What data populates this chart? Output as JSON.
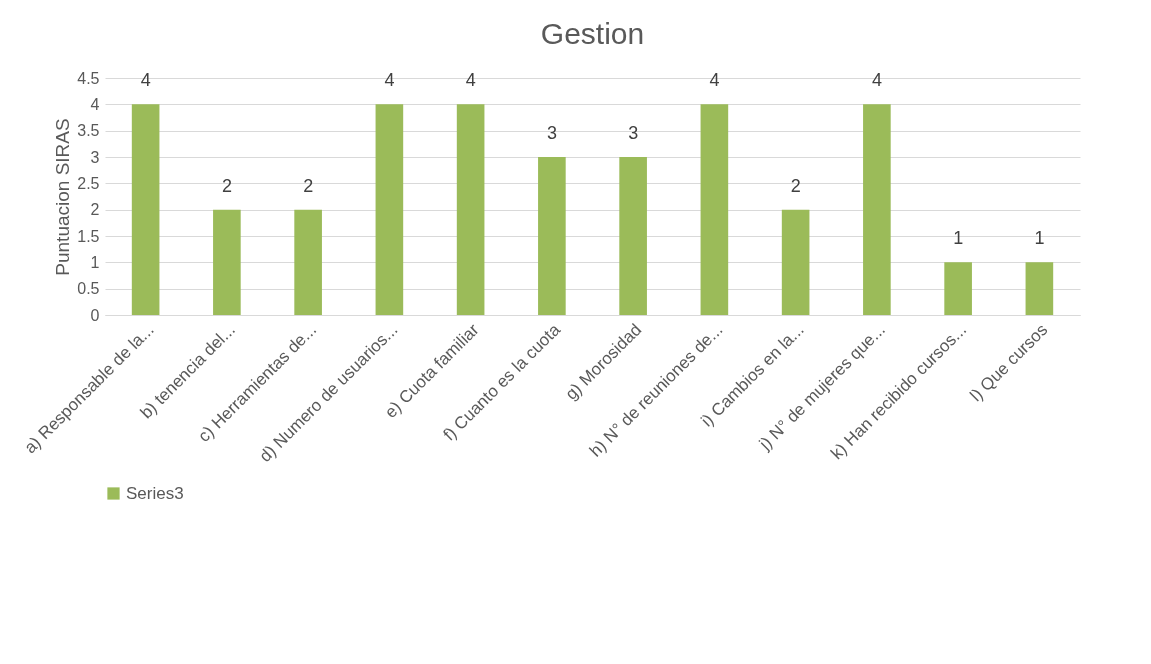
{
  "chart_data": {
    "type": "bar",
    "title": "Gestion",
    "ylabel": "Puntuacion SIRAS",
    "categories": [
      "a) Responsable de la...",
      "b) tenencia del...",
      "c) Herramientas de...",
      "d) Numero de usuarios...",
      "e) Cuota familiar",
      "f) Cuanto es la cuota",
      "g) Morosidad",
      "h) N° de reuniones de...",
      "i) Cambios en la...",
      "j) N° de mujeres que...",
      "k) Han recibido cursos...",
      "l) Que cursos"
    ],
    "series": [
      {
        "name": "Series3",
        "color": "#9bbb59",
        "values": [
          4,
          2,
          2,
          4,
          4,
          3,
          3,
          4,
          2,
          4,
          1,
          1
        ]
      }
    ],
    "ylim": [
      0,
      4.5
    ],
    "yticks": [
      0,
      0.5,
      1,
      1.5,
      2,
      2.5,
      3,
      3.5,
      4,
      4.5
    ],
    "grid": "y",
    "legend": "bottom",
    "data_labels": true
  }
}
